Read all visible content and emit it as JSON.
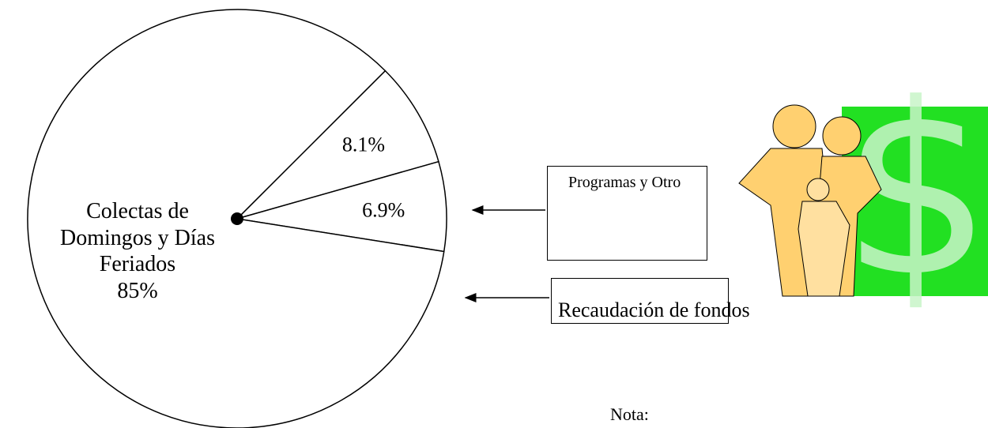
{
  "chart_data": {
    "type": "pie",
    "categories": [
      "Colectas de Domingos y Días Feriados",
      "Programas y Otro",
      "Recaudación de fondos"
    ],
    "values": [
      85,
      8.1,
      6.9
    ],
    "value_labels": [
      "85%",
      "8.1%",
      "6.9%"
    ],
    "note": "Nota:"
  }
}
